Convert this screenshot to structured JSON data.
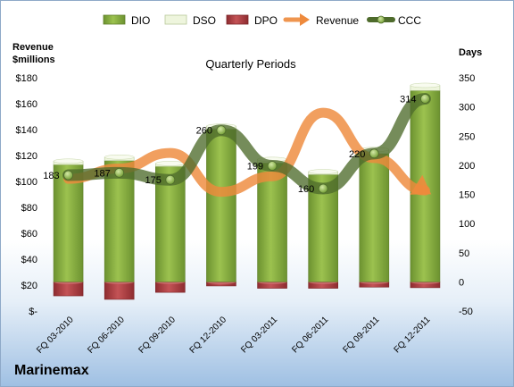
{
  "chart_data": {
    "type": "bar",
    "title": "Quarterly Periods",
    "company": "Marinemax",
    "left_axis_label": [
      "Revenue",
      "$millions"
    ],
    "right_axis_label": "Days",
    "categories": [
      "FQ 03-2010",
      "FQ 06-2010",
      "FQ 09-2010",
      "FQ 12-2010",
      "FQ 03-2011",
      "FQ 06-2011",
      "FQ 09-2011",
      "FQ 12-2011"
    ],
    "left_ticks": [
      "$180",
      "$160",
      "$140",
      "$120",
      "$100",
      "$80",
      "$60",
      "$40",
      "$20",
      "$-"
    ],
    "right_ticks": [
      "350",
      "300",
      "250",
      "200",
      "150",
      "100",
      "50",
      "0",
      "-50"
    ],
    "ylim_left": [
      0,
      180
    ],
    "ylim_right": [
      -50,
      350
    ],
    "legend_position": "top",
    "series": [
      {
        "name": "DIO",
        "axis": "right",
        "color": "#7fa63a",
        "values": [
          201,
          208,
          198,
          262,
          204,
          184,
          220,
          328
        ]
      },
      {
        "name": "DSO",
        "axis": "right",
        "color": "#e9f2d6",
        "values": [
          6,
          6,
          5,
          5,
          6,
          5,
          7,
          9
        ]
      },
      {
        "name": "DPO",
        "axis": "right",
        "color": "#a83a3d",
        "values": [
          -24,
          -30,
          -18,
          -7,
          -11,
          -11,
          -9,
          -10
        ]
      },
      {
        "name": "Revenue",
        "axis": "left",
        "color": "#ee8a3c",
        "values": [
          102,
          110,
          122,
          92,
          104,
          153,
          118,
          93
        ]
      },
      {
        "name": "CCC",
        "axis": "right",
        "color": "#4e6b2c",
        "values": [
          183,
          187,
          175,
          260,
          199,
          160,
          220,
          314
        ]
      }
    ],
    "ccc_labels": [
      "183",
      "187",
      "175",
      "260",
      "199",
      "160",
      "220",
      "314"
    ]
  },
  "colors": {
    "dio": "#7fa63a",
    "dso": "#e9f2d6",
    "dpo": "#a83a3d",
    "revenue": "#ee8a3c",
    "ccc": "#4e6b2c"
  }
}
